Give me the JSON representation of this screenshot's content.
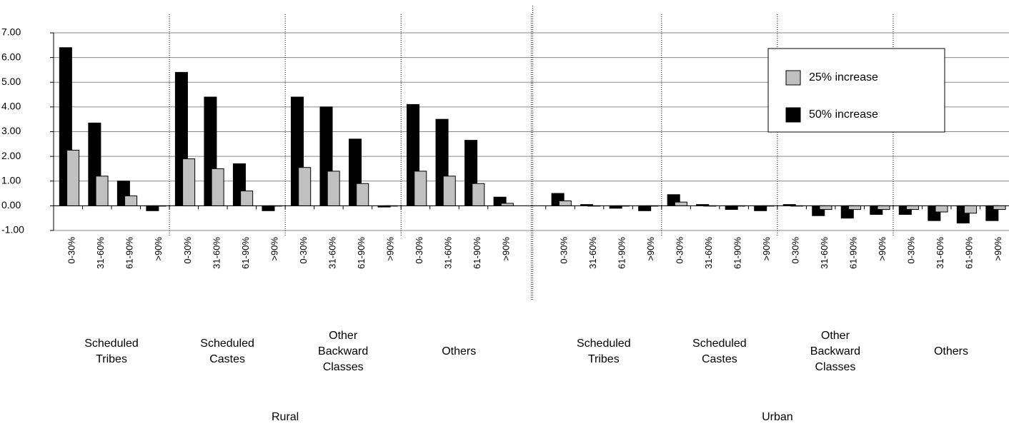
{
  "chart_data": {
    "type": "bar",
    "categories": [
      "0-30%",
      "31-60%",
      "61-90%",
      ">90%",
      "0-30%",
      "31-60%",
      "61-90%",
      ">90%",
      "0-30%",
      "31-60%",
      "61-90%",
      ">90%",
      "0-30%",
      "31-60%",
      "61-90%",
      ">90%",
      null,
      "0-30%",
      "31-60%",
      "61-90%",
      ">90%",
      "0-30%",
      "31-60%",
      "61-90%",
      ">90%",
      "0-30%",
      "31-60%",
      "61-90%",
      ">90%",
      "0-30%",
      "31-60%",
      "61-90%",
      ">90%"
    ],
    "series": [
      {
        "name": "25% increase",
        "color": "#c0c0c0",
        "values": [
          2.25,
          1.2,
          0.4,
          0,
          1.9,
          1.5,
          0.6,
          0,
          1.55,
          1.4,
          0.9,
          0,
          1.4,
          1.2,
          0.9,
          0.1,
          null,
          0.2,
          0,
          0,
          0,
          0.15,
          0,
          0,
          0,
          0,
          -0.15,
          -0.15,
          -0.15,
          -0.15,
          -0.25,
          -0.3,
          -0.15
        ]
      },
      {
        "name": "50% increase",
        "color": "#000000",
        "values": [
          6.4,
          3.35,
          1.0,
          -0.2,
          5.4,
          4.4,
          1.7,
          -0.2,
          4.4,
          4.0,
          2.7,
          -0.05,
          4.1,
          3.5,
          2.65,
          0.35,
          null,
          0.5,
          0.05,
          -0.1,
          -0.2,
          0.45,
          0.05,
          -0.15,
          -0.2,
          0.05,
          -0.4,
          -0.5,
          -0.35,
          -0.35,
          -0.6,
          -0.7,
          -0.6
        ]
      }
    ],
    "group_labels": [
      "Scheduled Tribes",
      "Scheduled Castes",
      "Other Backward Classes",
      "Others",
      "Scheduled Tribes",
      "Scheduled Castes",
      "Other Backward Classes",
      "Others"
    ],
    "sections": [
      "Rural",
      "Urban"
    ],
    "ylim": [
      -1,
      7
    ],
    "yticks": [
      {
        "value": 7,
        "label": "7.00"
      },
      {
        "value": 6,
        "label": "6.00"
      },
      {
        "value": 5,
        "label": "5.00"
      },
      {
        "value": 4,
        "label": "4.00"
      },
      {
        "value": 3,
        "label": "3.00"
      },
      {
        "value": 2,
        "label": "2.00"
      },
      {
        "value": 1,
        "label": "1.00"
      },
      {
        "value": 0,
        "label": "0.00"
      },
      {
        "value": -1,
        "label": "-1.00"
      }
    ],
    "grid": true,
    "legend": "upper right"
  }
}
